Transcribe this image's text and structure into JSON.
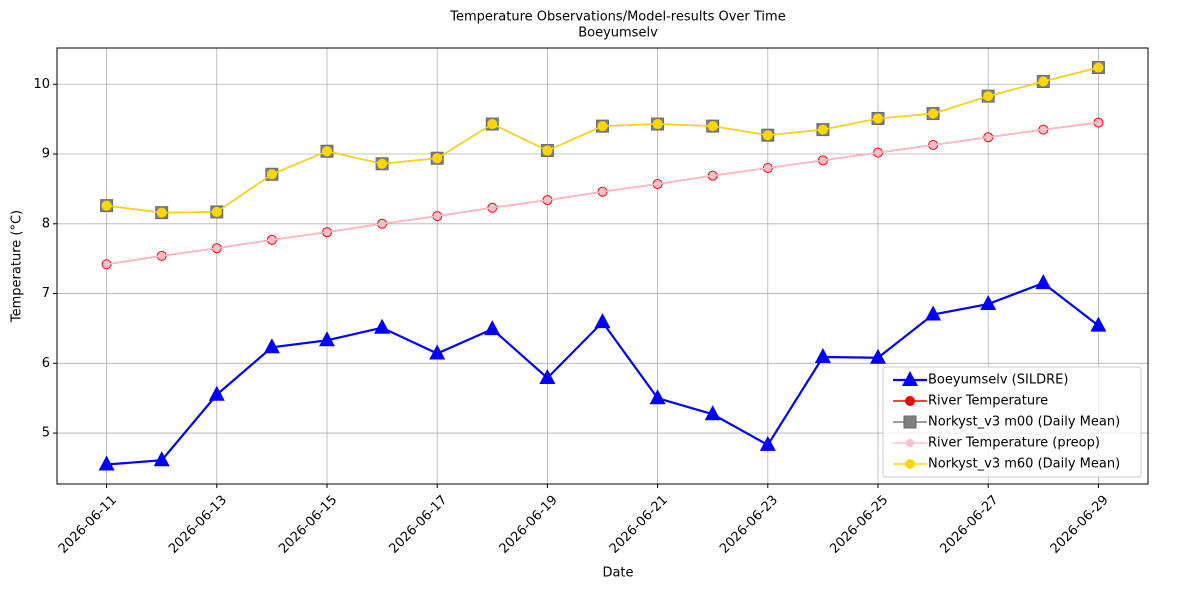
{
  "chart_data": {
    "type": "line",
    "title": "Temperature Observations/Model-results Over Time",
    "subtitle": "Boeyumselv",
    "x_label": "Date",
    "y_label": "Temperature (°C)",
    "x": [
      "2026-06-11",
      "2026-06-12",
      "2026-06-13",
      "2026-06-14",
      "2026-06-15",
      "2026-06-16",
      "2026-06-17",
      "2026-06-18",
      "2026-06-19",
      "2026-06-20",
      "2026-06-21",
      "2026-06-22",
      "2026-06-23",
      "2026-06-24",
      "2026-06-25",
      "2026-06-26",
      "2026-06-27",
      "2026-06-28",
      "2026-06-29"
    ],
    "xlim": [
      "2026-06-10T02:24",
      "2026-06-29T21:36"
    ],
    "xticks": [
      "2026-06-11",
      "2026-06-13",
      "2026-06-15",
      "2026-06-17",
      "2026-06-19",
      "2026-06-21",
      "2026-06-23",
      "2026-06-25",
      "2026-06-27",
      "2026-06-29"
    ],
    "ylim": [
      4.27,
      10.52
    ],
    "yticks": [
      5,
      6,
      7,
      8,
      9,
      10
    ],
    "grid": true,
    "legend": "lower right",
    "series": [
      {
        "name": "Boeyumselv (SILDRE)",
        "color": "#0000ff",
        "marker": "triangle",
        "values": [
          4.55,
          4.61,
          5.55,
          6.23,
          6.33,
          6.51,
          6.14,
          6.49,
          5.79,
          6.59,
          5.5,
          5.27,
          4.83,
          6.09,
          6.08,
          6.7,
          6.85,
          7.15,
          6.54
        ]
      },
      {
        "name": "River Temperature",
        "color": "#ff0000",
        "marker": "circle",
        "values": [
          7.42,
          7.54,
          7.65,
          7.77,
          7.88,
          8.0,
          8.11,
          8.23,
          8.34,
          8.46,
          8.57,
          8.69,
          8.8,
          8.91,
          9.02,
          9.13,
          9.24,
          9.35,
          9.45
        ]
      },
      {
        "name": "Norkyst_v3 m00 (Daily Mean)",
        "color": "#808080",
        "marker": "square",
        "values": [
          8.26,
          8.16,
          8.17,
          8.71,
          9.04,
          8.86,
          8.94,
          9.43,
          9.05,
          9.4,
          9.43,
          9.4,
          9.27,
          9.35,
          9.51,
          9.58,
          9.83,
          10.04,
          10.24
        ]
      },
      {
        "name": "River Temperature (preop)",
        "color": "#ffc0cb",
        "marker": "small-circle",
        "values": [
          7.42,
          7.54,
          7.65,
          7.77,
          7.88,
          8.0,
          8.11,
          8.23,
          8.34,
          8.46,
          8.57,
          8.69,
          8.8,
          8.91,
          9.02,
          9.13,
          9.24,
          9.35,
          9.45
        ]
      },
      {
        "name": "Norkyst_v3 m60 (Daily Mean)",
        "color": "#ffd700",
        "marker": "circle",
        "values": [
          8.26,
          8.16,
          8.17,
          8.71,
          9.04,
          8.86,
          8.94,
          9.43,
          9.05,
          9.4,
          9.43,
          9.4,
          9.27,
          9.35,
          9.51,
          9.58,
          9.83,
          10.04,
          10.24
        ]
      }
    ]
  }
}
